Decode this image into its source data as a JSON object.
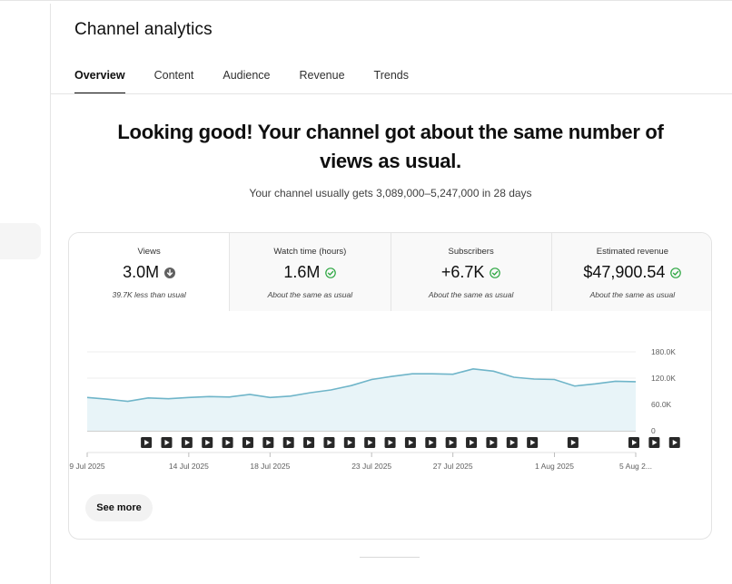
{
  "page": {
    "title": "Channel analytics"
  },
  "tabs": [
    {
      "label": "Overview",
      "active": true
    },
    {
      "label": "Content",
      "active": false
    },
    {
      "label": "Audience",
      "active": false
    },
    {
      "label": "Revenue",
      "active": false
    },
    {
      "label": "Trends",
      "active": false
    }
  ],
  "summary": {
    "headline": "Looking good! Your channel got about the same number of views as usual.",
    "subline": "Your channel usually gets 3,089,000–5,247,000 in 28 days"
  },
  "metrics": [
    {
      "label": "Views",
      "value": "3.0M",
      "icon": "arrow-down-circle-icon",
      "note": "39.7K less than usual"
    },
    {
      "label": "Watch time (hours)",
      "value": "1.6M",
      "icon": "check-circle-icon",
      "note": "About the same as usual"
    },
    {
      "label": "Subscribers",
      "value": "+6.7K",
      "icon": "check-circle-icon",
      "note": "About the same as usual"
    },
    {
      "label": "Estimated revenue",
      "value": "$47,900.54",
      "icon": "check-circle-icon",
      "note": "About the same as usual"
    }
  ],
  "colors": {
    "line": "#6fb5c9",
    "fill": "#e8f4f8",
    "check": "#2ba640",
    "down": "#606060",
    "marker": "#282828"
  },
  "chart_data": {
    "type": "area",
    "x": [
      "9 Jul",
      "10 Jul",
      "11 Jul",
      "12 Jul",
      "13 Jul",
      "14 Jul",
      "15 Jul",
      "16 Jul",
      "17 Jul",
      "18 Jul",
      "19 Jul",
      "20 Jul",
      "21 Jul",
      "22 Jul",
      "23 Jul",
      "24 Jul",
      "25 Jul",
      "26 Jul",
      "27 Jul",
      "28 Jul",
      "29 Jul",
      "30 Jul",
      "31 Jul",
      "1 Aug",
      "2 Aug",
      "3 Aug",
      "4 Aug",
      "5 Aug"
    ],
    "series": [
      {
        "values": [
          76000,
          72000,
          67000,
          75000,
          73000,
          76000,
          78000,
          77000,
          83000,
          76000,
          79000,
          87000,
          93000,
          103000,
          117000,
          124000,
          130000,
          130000,
          129000,
          141000,
          136000,
          122000,
          118000,
          117000,
          102000,
          107000,
          113000,
          112000
        ]
      }
    ],
    "ylim": [
      0,
      180000
    ],
    "yticks": [
      {
        "value": 180000,
        "label": "180.0K"
      },
      {
        "value": 120000,
        "label": "120.0K"
      },
      {
        "value": 60000,
        "label": "60.0K"
      },
      {
        "value": 0,
        "label": "0"
      }
    ],
    "xticks": [
      {
        "index": 0,
        "label": "9 Jul 2025"
      },
      {
        "index": 5,
        "label": "14 Jul 2025"
      },
      {
        "index": 9,
        "label": "18 Jul 2025"
      },
      {
        "index": 14,
        "label": "23 Jul 2025"
      },
      {
        "index": 18,
        "label": "27 Jul 2025"
      },
      {
        "index": 23,
        "label": "1 Aug 2025"
      },
      {
        "index": 27,
        "label": "5 Aug 2..."
      }
    ],
    "video_marker_days": [
      3,
      4,
      5,
      6,
      7,
      8,
      9,
      10,
      11,
      12,
      13,
      14,
      15,
      16,
      17,
      18,
      19,
      20,
      21,
      22,
      24,
      27,
      28,
      29
    ],
    "grid": true
  },
  "actions": {
    "see_more": "See more"
  }
}
